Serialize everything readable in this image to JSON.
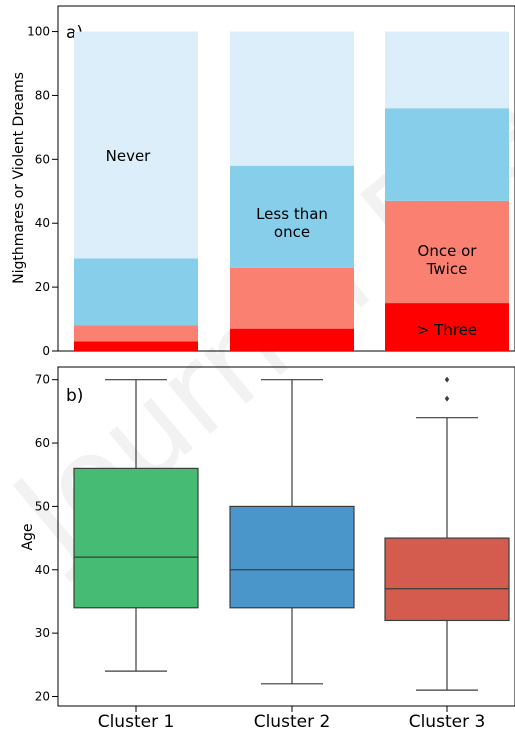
{
  "chart_data": [
    {
      "type": "bar",
      "stacked": true,
      "panel_label": "a)",
      "ylabel": "Nigthmares or Violent Dreams",
      "ylim": [
        0,
        108
      ],
      "yticks": [
        0,
        20,
        40,
        60,
        80,
        100
      ],
      "categories": [
        "Cluster 1",
        "Cluster 2",
        "Cluster 3"
      ],
      "series": [
        {
          "name": "> Three",
          "color": "#ff0000",
          "values": [
            3,
            7,
            15
          ]
        },
        {
          "name": "Once or Twice",
          "color": "#fa8072",
          "values": [
            5,
            19,
            32
          ]
        },
        {
          "name": "Less than once",
          "color": "#87ceeb",
          "values": [
            21,
            32,
            29
          ]
        },
        {
          "name": "Never",
          "color": "#dbeef9",
          "values": [
            71,
            42,
            24
          ]
        }
      ],
      "segment_labels": [
        {
          "lines": [
            "Never"
          ],
          "bar": 0,
          "y": 61
        },
        {
          "lines": [
            "Less than",
            "once"
          ],
          "bar": 1,
          "y": 40
        },
        {
          "lines": [
            "Once or",
            "Twice"
          ],
          "bar": 2,
          "y": 28.5
        },
        {
          "lines": [
            "> Three"
          ],
          "bar": 2,
          "y": 6.5
        }
      ],
      "grid": false,
      "legend": "none"
    },
    {
      "type": "box",
      "panel_label": "b)",
      "ylabel": "Age",
      "ylim": [
        18.5,
        72
      ],
      "yticks": [
        20,
        30,
        40,
        50,
        60,
        70
      ],
      "categories": [
        "Cluster 1",
        "Cluster 2",
        "Cluster 3"
      ],
      "boxes": [
        {
          "category": "Cluster 1",
          "color": "#45bb73",
          "whisker_low": 24,
          "q1": 34,
          "median": 42,
          "q3": 56,
          "whisker_high": 70,
          "outliers": []
        },
        {
          "category": "Cluster 2",
          "color": "#4a96cb",
          "whisker_low": 22,
          "q1": 34,
          "median": 40,
          "q3": 50,
          "whisker_high": 70,
          "outliers": []
        },
        {
          "category": "Cluster 3",
          "color": "#d45c4e",
          "whisker_low": 21,
          "q1": 32,
          "median": 37,
          "q3": 45,
          "whisker_high": 64,
          "outliers": [
            67,
            70
          ]
        }
      ],
      "grid": false,
      "legend": "none"
    }
  ]
}
